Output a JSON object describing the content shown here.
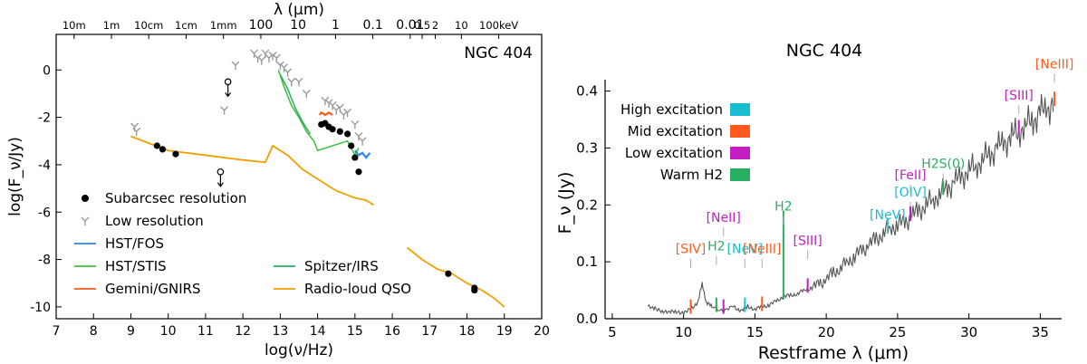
{
  "chart_data": [
    {
      "type": "scatter",
      "title": "NGC 404",
      "xlabel": "log(ν/Hz)",
      "ylabel": "log(F_ν/Jy)",
      "top_xlabel": "λ (μm)",
      "xlim": [
        7,
        20
      ],
      "ylim": [
        -10.5,
        1.5
      ],
      "xticks": [
        7,
        8,
        9,
        10,
        11,
        12,
        13,
        14,
        15,
        16,
        17,
        18,
        19,
        20
      ],
      "yticks": [
        0,
        -2,
        -4,
        -6,
        -8,
        -10
      ],
      "top_ticks": [
        {
          "label": "10m",
          "pos": 7.48
        },
        {
          "label": "1m",
          "pos": 8.48
        },
        {
          "label": "10cm",
          "pos": 9.48
        },
        {
          "label": "1cm",
          "pos": 10.48
        },
        {
          "label": "1mm",
          "pos": 11.48
        },
        {
          "label": "100",
          "pos": 12.48
        },
        {
          "label": "10",
          "pos": 13.48
        },
        {
          "label": "1",
          "pos": 14.48
        },
        {
          "label": "0.1",
          "pos": 15.48
        },
        {
          "label": "0.01",
          "pos": 16.48
        },
        {
          "label": "0.5",
          "pos": 16.8
        },
        {
          "label": "2",
          "pos": 17.15
        },
        {
          "label": "10",
          "pos": 17.85
        },
        {
          "label": "100keV",
          "pos": 18.85
        }
      ],
      "legend_position": "bottom-left",
      "legend": [
        {
          "label": "Subarcsec resolution",
          "marker": "dot"
        },
        {
          "label": "Low resolution",
          "marker": "tri"
        },
        {
          "label": "HST/FOS",
          "color": "#2e86de"
        },
        {
          "label": "HST/STIS",
          "color": "#3cbf3c"
        },
        {
          "label": "Gemini/GNIRS",
          "color": "#ff5a1f"
        },
        {
          "label": "Spitzer/IRS",
          "color": "#27ae60"
        },
        {
          "label": "Radio-loud QSO",
          "color": "#f0a000"
        }
      ],
      "series": [
        {
          "name": "Subarcsec resolution",
          "points": [
            [
              9.7,
              -3.2
            ],
            [
              9.85,
              -3.35
            ],
            [
              10.2,
              -3.55
            ],
            [
              14.1,
              -2.3
            ],
            [
              14.2,
              -2.25
            ],
            [
              14.3,
              -2.4
            ],
            [
              14.4,
              -2.5
            ],
            [
              14.6,
              -2.6
            ],
            [
              14.8,
              -2.7
            ],
            [
              14.9,
              -3.2
            ],
            [
              15.0,
              -3.7
            ],
            [
              15.1,
              -4.3
            ],
            [
              17.5,
              -8.6
            ],
            [
              18.2,
              -9.2
            ],
            [
              18.2,
              -9.3
            ]
          ]
        },
        {
          "name": "Upper limits",
          "points": [
            [
              11.6,
              -0.5
            ],
            [
              11.4,
              -4.3
            ]
          ]
        },
        {
          "name": "Low resolution",
          "points": [
            [
              9.1,
              -2.4
            ],
            [
              9.15,
              -2.6
            ],
            [
              11.5,
              -1.7
            ],
            [
              11.8,
              0.2
            ],
            [
              12.3,
              0.7
            ],
            [
              12.4,
              0.5
            ],
            [
              12.5,
              0.4
            ],
            [
              12.6,
              0.7
            ],
            [
              12.7,
              0.5
            ],
            [
              12.8,
              0.6
            ],
            [
              12.9,
              0.5
            ],
            [
              13.0,
              0.2
            ],
            [
              13.1,
              0.1
            ],
            [
              13.2,
              -0.1
            ],
            [
              13.3,
              -0.5
            ],
            [
              13.5,
              -0.5
            ],
            [
              13.7,
              -1.0
            ],
            [
              14.2,
              -1.3
            ],
            [
              14.3,
              -1.4
            ],
            [
              14.4,
              -1.5
            ],
            [
              14.5,
              -1.7
            ],
            [
              14.6,
              -1.6
            ],
            [
              14.7,
              -1.9
            ],
            [
              14.8,
              -1.8
            ],
            [
              15.0,
              -2.3
            ],
            [
              15.1,
              -2.8
            ],
            [
              15.2,
              -3.0
            ]
          ]
        },
        {
          "name": "Radio-loud QSO",
          "points": [
            [
              9.0,
              -2.8
            ],
            [
              9.5,
              -3.1
            ],
            [
              10.0,
              -3.4
            ],
            [
              10.5,
              -3.5
            ],
            [
              11.0,
              -3.6
            ],
            [
              11.5,
              -3.7
            ],
            [
              12.0,
              -3.8
            ],
            [
              12.6,
              -3.9
            ],
            [
              12.8,
              -3.2
            ],
            [
              13.2,
              -3.6
            ],
            [
              13.6,
              -4.2
            ],
            [
              14.0,
              -4.6
            ],
            [
              14.5,
              -5.1
            ],
            [
              15.0,
              -5.4
            ],
            [
              15.3,
              -5.5
            ],
            [
              15.5,
              -5.7
            ]
          ]
        },
        {
          "name": "Radio-loud QSO high",
          "points": [
            [
              16.4,
              -7.5
            ],
            [
              16.8,
              -8.0
            ],
            [
              17.2,
              -8.4
            ],
            [
              17.6,
              -8.6
            ],
            [
              18.0,
              -9.0
            ],
            [
              18.4,
              -9.3
            ],
            [
              18.7,
              -9.6
            ],
            [
              19.0,
              -10.0
            ]
          ]
        },
        {
          "name": "HST/STIS",
          "points": [
            [
              12.95,
              0.0
            ],
            [
              13.1,
              -0.7
            ],
            [
              13.3,
              -1.5
            ],
            [
              13.5,
              -2.0
            ],
            [
              13.7,
              -2.6
            ],
            [
              13.9,
              -3.0
            ],
            [
              14.0,
              -3.4
            ],
            [
              14.8,
              -3.0
            ],
            [
              14.9,
              -3.3
            ],
            [
              15.0,
              -3.6
            ],
            [
              15.1,
              -3.3
            ]
          ]
        },
        {
          "name": "Spitzer/IRS",
          "points": [
            [
              13.0,
              -0.2
            ],
            [
              13.2,
              -0.8
            ],
            [
              13.4,
              -1.6
            ],
            [
              13.6,
              -2.2
            ],
            [
              13.8,
              -2.7
            ]
          ]
        },
        {
          "name": "Gemini/GNIRS",
          "points": [
            [
              14.05,
              -1.9
            ],
            [
              14.1,
              -1.8
            ],
            [
              14.2,
              -1.9
            ],
            [
              14.3,
              -1.8
            ],
            [
              14.4,
              -1.9
            ]
          ]
        },
        {
          "name": "HST/FOS",
          "points": [
            [
              15.0,
              -3.4
            ],
            [
              15.1,
              -3.6
            ],
            [
              15.2,
              -3.5
            ],
            [
              15.3,
              -3.7
            ],
            [
              15.4,
              -3.5
            ]
          ]
        }
      ]
    },
    {
      "type": "line",
      "title": "NGC 404",
      "xlabel": "Restframe λ (μm)",
      "ylabel": "F_ν (Jy)",
      "xlim": [
        4.5,
        36.5
      ],
      "ylim": [
        0,
        0.42
      ],
      "xticks": [
        5,
        10,
        15,
        20,
        25,
        30,
        35
      ],
      "yticks": [
        0.0,
        0.1,
        0.2,
        0.3,
        0.4
      ],
      "legend_position": "upper-left",
      "legend": [
        {
          "label": "High excitation",
          "color": "#17becf"
        },
        {
          "label": "Mid excitation",
          "color": "#ff5a1f"
        },
        {
          "label": "Low excitation",
          "color": "#c21ec2"
        },
        {
          "label": "Warm H2",
          "color": "#27ae60"
        }
      ],
      "spectrum": [
        [
          7.5,
          0.02
        ],
        [
          8.0,
          0.02
        ],
        [
          8.5,
          0.01
        ],
        [
          9.0,
          0.015
        ],
        [
          9.5,
          0.01
        ],
        [
          10.0,
          0.012
        ],
        [
          10.5,
          0.015
        ],
        [
          11.0,
          0.03
        ],
        [
          11.3,
          0.06
        ],
        [
          11.6,
          0.03
        ],
        [
          12.0,
          0.02
        ],
        [
          12.8,
          0.015
        ],
        [
          13.5,
          0.02
        ],
        [
          14.0,
          0.015
        ],
        [
          14.5,
          0.02
        ],
        [
          15.0,
          0.018
        ],
        [
          15.5,
          0.02
        ],
        [
          16.0,
          0.025
        ],
        [
          16.5,
          0.03
        ],
        [
          17.0,
          0.04
        ],
        [
          17.5,
          0.04
        ],
        [
          18.0,
          0.045
        ],
        [
          18.5,
          0.05
        ],
        [
          19.0,
          0.055
        ],
        [
          19.5,
          0.06
        ],
        [
          20.0,
          0.07
        ],
        [
          20.5,
          0.08
        ],
        [
          21.0,
          0.09
        ],
        [
          21.5,
          0.1
        ],
        [
          22.0,
          0.11
        ],
        [
          22.5,
          0.12
        ],
        [
          23.0,
          0.13
        ],
        [
          23.5,
          0.14
        ],
        [
          24.0,
          0.15
        ],
        [
          24.5,
          0.16
        ],
        [
          25.0,
          0.165
        ],
        [
          25.5,
          0.17
        ],
        [
          26.0,
          0.18
        ],
        [
          26.5,
          0.19
        ],
        [
          27.0,
          0.2
        ],
        [
          27.5,
          0.21
        ],
        [
          28.0,
          0.22
        ],
        [
          28.5,
          0.23
        ],
        [
          29.0,
          0.24
        ],
        [
          29.5,
          0.25
        ],
        [
          30.0,
          0.26
        ],
        [
          30.5,
          0.27
        ],
        [
          31.0,
          0.28
        ],
        [
          31.5,
          0.29
        ],
        [
          32.0,
          0.3
        ],
        [
          32.5,
          0.31
        ],
        [
          33.0,
          0.32
        ],
        [
          33.5,
          0.33
        ],
        [
          34.0,
          0.34
        ],
        [
          34.5,
          0.35
        ],
        [
          35.0,
          0.36
        ],
        [
          35.5,
          0.37
        ],
        [
          36.0,
          0.38
        ]
      ],
      "lines": [
        {
          "label": "[SIV]",
          "x": 10.5,
          "group": "Mid excitation",
          "label_y": 0.115
        },
        {
          "label": "H2",
          "x": 12.3,
          "group": "Warm H2",
          "label_y": 0.12
        },
        {
          "label": "[NeII]",
          "x": 12.8,
          "group": "Low excitation",
          "label_y": 0.17
        },
        {
          "label": "[NeV]",
          "x": 14.3,
          "group": "High excitation",
          "label_y": 0.115
        },
        {
          "label": "[NeIII]",
          "x": 15.5,
          "group": "Mid excitation",
          "label_y": 0.115
        },
        {
          "label": "H2",
          "x": 17.0,
          "group": "Warm H2",
          "label_y": 0.19
        },
        {
          "label": "[SIII]",
          "x": 18.7,
          "group": "Low excitation",
          "label_y": 0.13
        },
        {
          "label": "[NeV]",
          "x": 24.3,
          "group": "High excitation",
          "label_y": 0.175
        },
        {
          "label": "[OIV]",
          "x": 25.9,
          "group": "High excitation",
          "label_y": 0.215
        },
        {
          "label": "[FeII]",
          "x": 25.9,
          "group": "Low excitation",
          "label_y": 0.245
        },
        {
          "label": "H2S(0)",
          "x": 28.2,
          "group": "Warm H2",
          "label_y": 0.265
        },
        {
          "label": "[SIII]",
          "x": 33.5,
          "group": "Low excitation",
          "label_y": 0.385
        },
        {
          "label": "[NeIII]",
          "x": 36.0,
          "group": "Mid excitation",
          "label_y": 0.44
        }
      ]
    }
  ]
}
